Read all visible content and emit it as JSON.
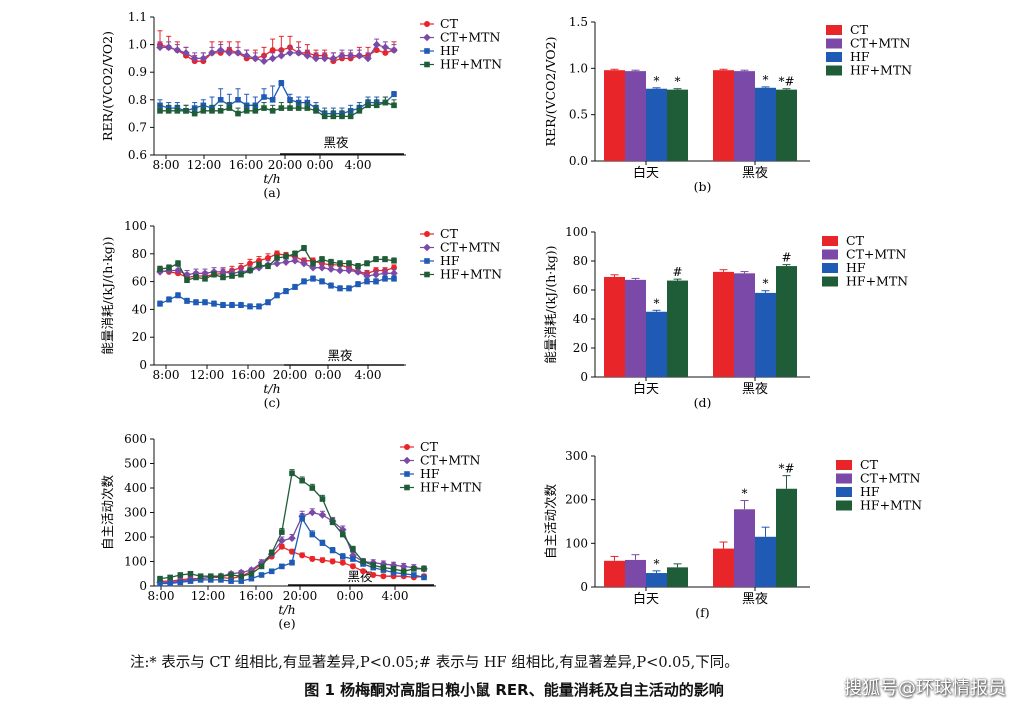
{
  "colors": {
    "CT": "#e8262a",
    "CT+MTN": "#7b4aa8",
    "HF": "#1f5bb5",
    "HF+MTN": "#1f5c38"
  },
  "note": "注:* 表示与 CT 组相比,有显著差异,P<0.05;# 表示与 HF 组相比,有显著差异,P<0.05,下同。",
  "caption": "图 1   杨梅酮对高脂日粮小鼠 RER、能量消耗及自主活动的影响",
  "watermark": "搜狐号@环球情报员",
  "chart_data": [
    {
      "id": "a",
      "type": "line",
      "panel_label": "(a)",
      "ylabel": "RER/(VCO2/VO2)",
      "xlabel": "t/h",
      "night_label": "黑夜",
      "xticks": [
        "8:00",
        "12:00",
        "16:00",
        "20:00",
        "0:00",
        "4:00"
      ],
      "ylim": [
        0.6,
        1.1
      ],
      "yticks": [
        "0.6",
        "0.7",
        "0.8",
        "0.9",
        "1.0",
        "1.1"
      ],
      "series": [
        {
          "name": "CT",
          "values": [
            1.0,
            0.99,
            0.98,
            0.96,
            0.94,
            0.94,
            0.97,
            0.97,
            0.98,
            0.97,
            0.95,
            0.95,
            0.96,
            0.98,
            0.98,
            0.99,
            0.97,
            0.97,
            0.96,
            0.96,
            0.94,
            0.95,
            0.95,
            0.96,
            0.96,
            0.98,
            0.97,
            0.98
          ],
          "err": [
            0.05,
            0.04,
            0.03,
            0.03,
            0.02,
            0.03,
            0.04,
            0.04,
            0.03,
            0.04,
            0.03,
            0.03,
            0.03,
            0.04,
            0.05,
            0.04,
            0.04,
            0.03,
            0.02,
            0.02,
            0.03,
            0.02,
            0.02,
            0.03,
            0.03,
            0.02,
            0.02,
            0.03
          ]
        },
        {
          "name": "CT+MTN",
          "values": [
            0.99,
            0.99,
            0.98,
            0.97,
            0.95,
            0.95,
            0.97,
            0.98,
            0.97,
            0.97,
            0.96,
            0.95,
            0.94,
            0.95,
            0.96,
            0.97,
            0.97,
            0.96,
            0.95,
            0.95,
            0.95,
            0.96,
            0.96,
            0.96,
            0.95,
            1.0,
            0.99,
            0.98
          ],
          "err": [
            0.02,
            0.02,
            0.02,
            0.02,
            0.02,
            0.02,
            0.02,
            0.02,
            0.02,
            0.02,
            0.02,
            0.02,
            0.02,
            0.02,
            0.02,
            0.02,
            0.02,
            0.02,
            0.02,
            0.02,
            0.02,
            0.02,
            0.02,
            0.02,
            0.02,
            0.02,
            0.02,
            0.02
          ]
        },
        {
          "name": "HF",
          "values": [
            0.78,
            0.77,
            0.77,
            0.76,
            0.77,
            0.78,
            0.77,
            0.8,
            0.78,
            0.8,
            0.78,
            0.78,
            0.81,
            0.8,
            0.86,
            0.8,
            0.79,
            0.79,
            0.77,
            0.75,
            0.75,
            0.75,
            0.76,
            0.77,
            0.79,
            0.79,
            0.79,
            0.82
          ],
          "err": [
            0.02,
            0.02,
            0.02,
            0.02,
            0.02,
            0.02,
            0.04,
            0.04,
            0.04,
            0.04,
            0.04,
            0.03,
            0.03,
            0.05,
            0.01,
            0.02,
            0.02,
            0.02,
            0.02,
            0.02,
            0.02,
            0.02,
            0.02,
            0.02,
            0.02,
            0.02,
            0.02,
            0.01
          ]
        },
        {
          "name": "HF+MTN",
          "values": [
            0.76,
            0.76,
            0.76,
            0.76,
            0.75,
            0.76,
            0.76,
            0.76,
            0.77,
            0.75,
            0.76,
            0.76,
            0.77,
            0.76,
            0.77,
            0.77,
            0.77,
            0.77,
            0.76,
            0.74,
            0.74,
            0.74,
            0.74,
            0.76,
            0.78,
            0.78,
            0.79,
            0.78
          ],
          "err": [
            0.02,
            0.02,
            0.02,
            0.02,
            0.02,
            0.02,
            0.02,
            0.02,
            0.02,
            0.02,
            0.02,
            0.02,
            0.02,
            0.02,
            0.02,
            0.02,
            0.02,
            0.02,
            0.02,
            0.02,
            0.02,
            0.02,
            0.02,
            0.02,
            0.02,
            0.02,
            0.02,
            0.02
          ]
        }
      ]
    },
    {
      "id": "b",
      "type": "bar",
      "panel_label": "(b)",
      "ylabel": "RER/(VCO2/VO2)",
      "categories": [
        "白天",
        "黑夜"
      ],
      "ylim": [
        0,
        1.5
      ],
      "yticks": [
        "0.0",
        "0.5",
        "1.0",
        "1.5"
      ],
      "series": [
        {
          "name": "CT",
          "values": [
            0.98,
            0.98
          ],
          "err": [
            0.01,
            0.01
          ],
          "marks": [
            "",
            ""
          ]
        },
        {
          "name": "CT+MTN",
          "values": [
            0.97,
            0.97
          ],
          "err": [
            0.01,
            0.01
          ],
          "marks": [
            "",
            ""
          ]
        },
        {
          "name": "HF",
          "values": [
            0.78,
            0.79
          ],
          "err": [
            0.01,
            0.01
          ],
          "marks": [
            "*",
            "*"
          ]
        },
        {
          "name": "HF+MTN",
          "values": [
            0.77,
            0.77
          ],
          "err": [
            0.01,
            0.01
          ],
          "marks": [
            "*",
            "*#"
          ]
        }
      ]
    },
    {
      "id": "c",
      "type": "line",
      "panel_label": "(c)",
      "ylabel": "能量消耗/(kJ/(h·kg))",
      "xlabel": "t/h",
      "night_label": "黑夜",
      "xticks": [
        "8:00",
        "12:00",
        "16:00",
        "20:00",
        "0:00",
        "4:00"
      ],
      "ylim": [
        0,
        100
      ],
      "yticks": [
        "0",
        "20",
        "40",
        "60",
        "80",
        "100"
      ],
      "series": [
        {
          "name": "CT",
          "values": [
            68,
            67,
            66,
            63,
            64,
            64,
            65,
            66,
            68,
            70,
            73,
            75,
            77,
            80,
            79,
            78,
            75,
            75,
            73,
            72,
            72,
            70,
            67,
            66,
            68,
            68,
            70
          ],
          "err": [
            3,
            3,
            3,
            3,
            3,
            3,
            3,
            3,
            3,
            3,
            3,
            3,
            3,
            2,
            2,
            2,
            2,
            2,
            2,
            2,
            2,
            2,
            2,
            2,
            2,
            2,
            2
          ]
        },
        {
          "name": "CT+MTN",
          "values": [
            67,
            68,
            68,
            65,
            66,
            66,
            67,
            67,
            66,
            67,
            68,
            70,
            72,
            73,
            74,
            75,
            73,
            70,
            70,
            69,
            68,
            68,
            67,
            64,
            65,
            66,
            66
          ],
          "err": [
            3,
            3,
            3,
            3,
            3,
            3,
            3,
            3,
            3,
            3,
            3,
            3,
            3,
            3,
            3,
            3,
            3,
            3,
            3,
            3,
            3,
            3,
            3,
            3,
            3,
            3,
            3
          ]
        },
        {
          "name": "HF",
          "values": [
            44,
            47,
            50,
            46,
            45,
            45,
            44,
            43,
            43,
            43,
            42,
            42,
            45,
            50,
            53,
            56,
            60,
            62,
            60,
            57,
            55,
            55,
            58,
            60,
            60,
            62,
            62
          ],
          "err": [
            2,
            2,
            2,
            2,
            2,
            2,
            2,
            2,
            2,
            2,
            2,
            2,
            2,
            2,
            2,
            2,
            2,
            2,
            2,
            2,
            2,
            2,
            2,
            2,
            2,
            2,
            2
          ]
        },
        {
          "name": "HF+MTN",
          "values": [
            69,
            70,
            73,
            61,
            63,
            62,
            65,
            63,
            64,
            65,
            68,
            72,
            71,
            77,
            78,
            80,
            84,
            73,
            76,
            74,
            73,
            73,
            71,
            73,
            76,
            76,
            75
          ],
          "err": [
            2,
            2,
            2,
            2,
            2,
            2,
            2,
            2,
            2,
            2,
            2,
            2,
            2,
            2,
            2,
            2,
            2,
            2,
            2,
            2,
            2,
            2,
            2,
            2,
            2,
            2,
            2
          ]
        }
      ]
    },
    {
      "id": "d",
      "type": "bar",
      "panel_label": "(d)",
      "ylabel": "能量消耗/(kJ/(h·kg))",
      "categories": [
        "白天",
        "黑夜"
      ],
      "ylim": [
        0,
        100
      ],
      "yticks": [
        "0",
        "20",
        "40",
        "60",
        "80",
        "100"
      ],
      "series": [
        {
          "name": "CT",
          "values": [
            69,
            72.5
          ],
          "err": [
            1.5,
            1.5
          ],
          "marks": [
            "",
            ""
          ]
        },
        {
          "name": "CT+MTN",
          "values": [
            67,
            71.5
          ],
          "err": [
            1,
            1.2
          ],
          "marks": [
            "",
            ""
          ]
        },
        {
          "name": "HF",
          "values": [
            45,
            58
          ],
          "err": [
            1,
            1.5
          ],
          "marks": [
            "*",
            "*"
          ]
        },
        {
          "name": "HF+MTN",
          "values": [
            66.5,
            76.5
          ],
          "err": [
            1,
            1
          ],
          "marks": [
            "#",
            "#"
          ]
        }
      ]
    },
    {
      "id": "e",
      "type": "line",
      "panel_label": "(e)",
      "ylabel": "自主活动次数",
      "xlabel": "t/h",
      "night_label": "黑夜",
      "xticks": [
        "8:00",
        "12:00",
        "16:00",
        "20:00",
        "0:00",
        "4:00"
      ],
      "ylim": [
        0,
        600
      ],
      "yticks": [
        "0",
        "100",
        "200",
        "300",
        "400",
        "500",
        "600"
      ],
      "series": [
        {
          "name": "CT",
          "values": [
            20,
            20,
            25,
            30,
            30,
            35,
            35,
            30,
            40,
            60,
            90,
            120,
            160,
            140,
            125,
            110,
            105,
            100,
            95,
            80,
            60,
            45,
            40,
            40,
            40,
            35,
            40
          ],
          "err": [
            8,
            8,
            8,
            8,
            8,
            8,
            8,
            8,
            8,
            8,
            10,
            10,
            10,
            10,
            10,
            10,
            10,
            10,
            10,
            10,
            8,
            8,
            8,
            8,
            8,
            8,
            8
          ]
        },
        {
          "name": "CT+MTN",
          "values": [
            15,
            15,
            20,
            25,
            30,
            35,
            40,
            50,
            55,
            65,
            95,
            130,
            185,
            195,
            285,
            300,
            290,
            265,
            230,
            125,
            100,
            95,
            90,
            85,
            80,
            75,
            70
          ],
          "err": [
            8,
            8,
            8,
            8,
            8,
            8,
            8,
            8,
            8,
            8,
            12,
            12,
            15,
            15,
            20,
            15,
            15,
            15,
            15,
            12,
            12,
            12,
            12,
            12,
            12,
            12,
            12
          ]
        },
        {
          "name": "HF",
          "values": [
            10,
            10,
            15,
            20,
            25,
            25,
            25,
            20,
            20,
            30,
            45,
            60,
            80,
            95,
            275,
            210,
            175,
            145,
            120,
            110,
            90,
            75,
            65,
            55,
            50,
            45,
            35
          ],
          "err": [
            5,
            5,
            5,
            5,
            5,
            5,
            5,
            5,
            5,
            5,
            8,
            8,
            8,
            10,
            20,
            15,
            12,
            12,
            12,
            10,
            10,
            10,
            10,
            10,
            8,
            8,
            8
          ]
        },
        {
          "name": "HF+MTN",
          "values": [
            30,
            35,
            45,
            50,
            40,
            40,
            40,
            45,
            40,
            50,
            80,
            135,
            220,
            460,
            430,
            400,
            355,
            260,
            210,
            150,
            100,
            85,
            75,
            70,
            60,
            70,
            70
          ],
          "err": [
            8,
            8,
            8,
            8,
            8,
            8,
            8,
            8,
            8,
            8,
            10,
            12,
            15,
            15,
            15,
            15,
            15,
            15,
            15,
            12,
            10,
            10,
            10,
            10,
            10,
            10,
            10
          ]
        }
      ]
    },
    {
      "id": "f",
      "type": "bar",
      "panel_label": "(f)",
      "ylabel": "自主活动次数",
      "categories": [
        "白天",
        "黑夜"
      ],
      "ylim": [
        0,
        300
      ],
      "yticks": [
        "0",
        "100",
        "200",
        "300"
      ],
      "series": [
        {
          "name": "CT",
          "values": [
            60,
            88
          ],
          "err": [
            10,
            15
          ],
          "marks": [
            "",
            ""
          ]
        },
        {
          "name": "CT+MTN",
          "values": [
            62,
            178
          ],
          "err": [
            12,
            20
          ],
          "marks": [
            "",
            "*"
          ]
        },
        {
          "name": "HF",
          "values": [
            32,
            115
          ],
          "err": [
            5,
            22
          ],
          "marks": [
            "*",
            ""
          ]
        },
        {
          "name": "HF+MTN",
          "values": [
            45,
            225
          ],
          "err": [
            8,
            30
          ],
          "marks": [
            "",
            "*#"
          ]
        }
      ]
    }
  ]
}
